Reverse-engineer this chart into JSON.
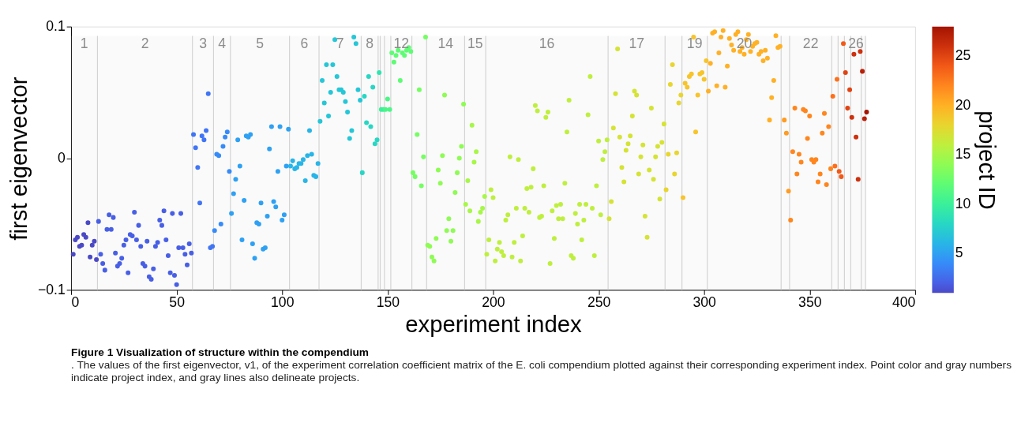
{
  "chart_data": {
    "type": "scatter",
    "title": "Figure 1 Visualization of structure within the compendium",
    "subtitle": ". The values of the first eigenvector, v1, of the experiment correlation coefficient matrix of the E. coli compendium plotted against their corresponding experiment index. Point color and gray numbers indicate project index, and gray lines also delineate projects.",
    "xlabel": "experiment index",
    "ylabel": "first eigenvector",
    "clabel": "project ID",
    "xlim": [
      0,
      400
    ],
    "xticks": [
      0,
      50,
      100,
      150,
      200,
      250,
      300,
      350,
      400
    ],
    "ylim": [
      -0.1,
      0.1
    ],
    "yticks": [
      -0.1,
      0,
      0.1
    ],
    "clim": [
      1,
      28
    ],
    "cticks": [
      5,
      10,
      15,
      20,
      25
    ],
    "x": [
      1,
      2,
      3,
      4,
      5,
      6,
      7,
      8,
      9,
      10,
      11,
      12,
      13,
      14,
      15,
      16,
      17,
      18,
      19,
      20,
      21,
      22,
      23,
      24,
      25,
      26,
      27,
      28,
      29,
      30,
      31,
      32,
      33,
      34,
      35,
      36,
      37,
      38,
      39,
      40,
      41,
      42,
      43,
      44,
      45,
      46,
      47,
      48,
      49,
      50,
      51,
      52,
      53,
      54,
      55,
      56,
      57,
      58,
      59,
      60,
      61,
      62,
      63,
      64,
      65,
      66,
      67,
      68,
      69,
      70,
      71,
      72,
      73,
      74,
      75,
      76,
      77,
      78,
      79,
      80,
      81,
      82,
      83,
      84,
      85,
      86,
      87,
      88,
      89,
      90,
      91,
      92,
      93,
      94,
      95,
      96,
      97,
      98,
      99,
      100,
      101,
      102,
      103,
      104,
      105,
      106,
      107,
      108,
      109,
      110,
      111,
      112,
      113,
      114,
      115,
      116,
      117,
      118,
      119,
      120,
      121,
      122,
      123,
      124,
      125,
      126,
      127,
      128,
      129,
      130,
      131,
      132,
      133,
      134,
      135,
      136,
      137,
      138,
      139,
      140,
      141,
      142,
      143,
      144,
      145,
      146,
      147,
      148,
      149,
      150,
      151,
      152,
      153,
      154,
      155,
      156,
      157,
      158,
      159,
      160,
      161,
      162,
      163,
      164,
      165,
      166,
      167,
      168,
      169,
      170,
      171,
      172,
      173,
      174,
      175,
      176,
      177,
      178,
      179,
      180,
      181,
      182,
      183,
      184,
      185,
      186,
      187,
      188,
      189,
      190,
      191,
      192,
      193,
      194,
      195,
      196,
      197,
      198,
      199,
      200,
      201,
      202,
      203,
      204,
      205,
      206,
      207,
      208,
      209,
      210,
      211,
      212,
      213,
      214,
      215,
      216,
      217,
      218,
      219,
      220,
      221,
      222,
      223,
      224,
      225,
      226,
      227,
      228,
      229,
      230,
      231,
      232,
      233,
      234,
      235,
      236,
      237,
      238,
      239,
      240,
      241,
      242,
      243,
      244,
      245,
      246,
      247,
      248,
      249,
      250,
      251,
      252,
      253,
      254,
      255,
      256,
      257,
      258,
      259,
      260,
      261,
      262,
      263,
      264,
      265,
      266,
      267,
      268,
      269,
      270,
      271,
      272,
      273,
      274,
      275,
      276,
      277,
      278,
      279,
      280,
      281,
      282,
      283,
      284,
      285,
      286,
      287,
      288,
      289,
      290,
      291,
      292,
      293,
      294,
      295,
      296,
      297,
      298,
      299,
      300,
      301,
      302,
      303,
      304,
      305,
      306,
      307,
      308,
      309,
      310,
      311,
      312,
      313,
      314,
      315,
      316,
      317,
      318,
      319,
      320,
      321,
      322,
      323,
      324,
      325,
      326,
      327,
      328,
      329,
      330,
      331,
      332,
      333,
      334,
      335,
      336,
      337,
      338,
      339,
      340,
      341,
      342,
      343,
      344,
      345,
      346,
      347,
      348,
      349,
      350,
      351,
      352,
      353,
      354,
      355,
      356,
      357,
      358,
      359,
      360,
      361,
      362,
      363,
      364,
      365,
      366,
      367,
      368,
      369,
      370,
      371,
      372,
      373,
      374,
      375,
      376,
      377
    ],
    "values": [
      -0.073,
      -0.062,
      -0.06,
      -0.067,
      -0.066,
      -0.058,
      -0.06,
      -0.049,
      -0.075,
      -0.066,
      -0.063,
      -0.077,
      -0.048,
      -0.073,
      -0.08,
      -0.085,
      -0.054,
      -0.043,
      -0.054,
      -0.045,
      -0.072,
      -0.082,
      -0.08,
      -0.076,
      -0.066,
      -0.062,
      -0.087,
      -0.058,
      -0.059,
      -0.041,
      -0.062,
      -0.051,
      -0.067,
      -0.08,
      -0.082,
      -0.063,
      -0.09,
      -0.092,
      -0.084,
      -0.067,
      -0.064,
      -0.047,
      -0.051,
      -0.04,
      -0.062,
      -0.074,
      -0.087,
      -0.042,
      -0.089,
      -0.096,
      -0.068,
      -0.042,
      -0.068,
      -0.073,
      -0.081,
      -0.065,
      -0.072,
      0.018,
      0.008,
      -0.007,
      -0.034,
      0.017,
      0.014,
      0.021,
      0.049,
      -0.068,
      -0.067,
      -0.055,
      0.003,
      0.002,
      -0.05,
      0.009,
      0.016,
      0.02,
      -0.01,
      -0.042,
      -0.027,
      -0.016,
      0.014,
      -0.006,
      -0.062,
      -0.032,
      0.017,
      0.016,
      0.018,
      -0.065,
      -0.076,
      -0.049,
      -0.05,
      -0.034,
      -0.069,
      -0.068,
      -0.044,
      0.007,
      0.024,
      -0.033,
      -0.037,
      -0.01,
      0.024,
      -0.047,
      -0.043,
      -0.006,
      0.022,
      -0.006,
      -0.002,
      -0.008,
      -0.007,
      -0.004,
      -0.004,
      -0.001,
      -0.017,
      0.002,
      0.021,
      0.003,
      -0.013,
      -0.014,
      -0.004,
      0.028,
      0.059,
      0.042,
      0.071,
      0.032,
      0.05,
      0.071,
      0.09,
      0.062,
      0.052,
      0.052,
      0.05,
      0.043,
      0.035,
      0.015,
      0.021,
      0.092,
      0.087,
      0.052,
      0.044,
      -0.011,
      0.047,
      0.027,
      0.062,
      0.024,
      0.054,
      0.011,
      0.014,
      0.065,
      0.037,
      0.037,
      0.037,
      0.045,
      0.037,
      0.08,
      0.073,
      0.078,
      0.082,
      0.059,
      0.08,
      0.078,
      0.082,
      0.084,
      0.081,
      -0.011,
      -0.014,
      0.018,
      0.052,
      -0.021,
      0.001,
      0.092,
      -0.066,
      -0.067,
      -0.075,
      -0.078,
      -0.061,
      -0.009,
      -0.019,
      0.002,
      0.048,
      -0.055,
      -0.046,
      -0.063,
      -0.055,
      -0.026,
      -0.011,
      0.0,
      0.009,
      0.041,
      -0.035,
      -0.017,
      -0.04,
      0.025,
      -0.003,
      0.005,
      -0.048,
      -0.041,
      -0.038,
      -0.029,
      -0.073,
      -0.062,
      -0.024,
      -0.03,
      -0.078,
      -0.069,
      -0.064,
      -0.071,
      -0.074,
      -0.047,
      -0.043,
      0.001,
      -0.075,
      -0.064,
      -0.038,
      -0.001,
      -0.078,
      -0.059,
      -0.038,
      -0.023,
      -0.041,
      -0.022,
      -0.008,
      0.04,
      0.036,
      -0.045,
      -0.044,
      -0.021,
      0.031,
      0.035,
      -0.08,
      -0.04,
      -0.061,
      -0.036,
      -0.046,
      -0.035,
      -0.046,
      -0.019,
      0.02,
      0.044,
      -0.074,
      -0.076,
      -0.042,
      -0.05,
      -0.035,
      -0.062,
      -0.047,
      -0.035,
      0.033,
      0.062,
      -0.038,
      -0.074,
      -0.021,
      0.013,
      -0.043,
      -0.001,
      0.005,
      0.014,
      -0.046,
      -0.033,
      0.023,
      0.049,
      0.083,
      0.016,
      -0.007,
      -0.018,
      0.006,
      0.011,
      0.017,
      0.032,
      0.051,
      0.048,
      -0.012,
      0.001,
      0.01,
      -0.044,
      -0.06,
      -0.009,
      0.038,
      -0.016,
      0.001,
      0.009,
      -0.031,
      0.012,
      0.026,
      -0.024,
      0.003,
      0.056,
      0.071,
      -0.012,
      0.004,
      0.042,
      0.048,
      -0.03,
      0.057,
      0.054,
      0.062,
      0.064,
      0.092,
      0.02,
      0.048,
      0.064,
      0.065,
      0.06,
      0.074,
      0.051,
      0.072,
      0.095,
      0.096,
      0.055,
      0.08,
      0.092,
      0.097,
      0.054,
      0.07,
      0.091,
      0.086,
      0.082,
      0.094,
      0.096,
      0.081,
      0.084,
      0.079,
      0.09,
      0.094,
      0.081,
      0.085,
      0.087,
      0.088,
      0.079,
      0.081,
      0.074,
      0.082,
      0.076,
      0.029,
      0.046,
      0.059,
      0.093,
      0.084,
      0.085,
      null,
      0.029,
      0.019,
      -0.025,
      -0.047,
      0.005,
      0.038,
      -0.012,
      0.003,
      -0.003,
      0.037,
      0.036,
      0.015,
      0.032,
      -0.001,
      -0.003,
      -0.001,
      -0.018,
      -0.012,
      0.019,
      0.034,
      -0.02,
      0.024,
      -0.008,
      0.047,
      -0.006,
      0.06,
      -0.01,
      -0.014,
      0.087,
      0.065,
      0.038,
      0.052,
      0.031,
      0.079,
      0.016,
      -0.016,
      0.081,
      0.066,
      0.03,
      0.035
    ],
    "cvalues": [
      1,
      1,
      1,
      1,
      1,
      1,
      1,
      1,
      1,
      1,
      1,
      1,
      2,
      2,
      2,
      2,
      2,
      2,
      2,
      2,
      2,
      2,
      2,
      2,
      2,
      2,
      2,
      2,
      2,
      2,
      2,
      2,
      2,
      2,
      2,
      2,
      2,
      2,
      2,
      2,
      2,
      2,
      2,
      2,
      2,
      2,
      2,
      2,
      2,
      2,
      2,
      2,
      2,
      2,
      2,
      2,
      2,
      3,
      3,
      3,
      3,
      3,
      3,
      3,
      3,
      3,
      3,
      4,
      4,
      4,
      4,
      4,
      4,
      4,
      4,
      5,
      5,
      5,
      5,
      5,
      5,
      5,
      5,
      5,
      5,
      5,
      5,
      5,
      5,
      5,
      5,
      5,
      5,
      5,
      5,
      5,
      5,
      5,
      5,
      5,
      5,
      5,
      5,
      6,
      6,
      6,
      6,
      6,
      6,
      6,
      6,
      6,
      6,
      6,
      6,
      6,
      6,
      7,
      7,
      7,
      7,
      7,
      7,
      7,
      7,
      7,
      7,
      7,
      7,
      7,
      7,
      7,
      7,
      7,
      7,
      7,
      7,
      8,
      8,
      8,
      8,
      8,
      8,
      8,
      8,
      9,
      10,
      10,
      11,
      11,
      11,
      12,
      12,
      12,
      12,
      12,
      12,
      12,
      12,
      12,
      12,
      13,
      13,
      13,
      13,
      13,
      13,
      13,
      14,
      14,
      14,
      14,
      14,
      14,
      14,
      14,
      14,
      14,
      14,
      14,
      14,
      14,
      14,
      14,
      14,
      14,
      15,
      15,
      15,
      15,
      15,
      15,
      15,
      15,
      15,
      15,
      16,
      16,
      16,
      16,
      16,
      16,
      16,
      16,
      16,
      16,
      16,
      16,
      16,
      16,
      16,
      16,
      16,
      16,
      16,
      16,
      16,
      16,
      16,
      16,
      16,
      16,
      16,
      16,
      16,
      16,
      16,
      16,
      16,
      16,
      16,
      16,
      16,
      16,
      16,
      16,
      16,
      16,
      16,
      16,
      16,
      16,
      16,
      16,
      16,
      16,
      16,
      16,
      16,
      16,
      16,
      16,
      16,
      16,
      17,
      17,
      17,
      17,
      17,
      17,
      17,
      17,
      17,
      17,
      17,
      17,
      17,
      17,
      17,
      17,
      17,
      17,
      17,
      17,
      17,
      17,
      17,
      17,
      17,
      17,
      17,
      18,
      18,
      18,
      18,
      18,
      18,
      18,
      18,
      19,
      19,
      19,
      19,
      19,
      19,
      19,
      19,
      19,
      19,
      19,
      19,
      20,
      20,
      20,
      20,
      20,
      20,
      20,
      20,
      20,
      20,
      20,
      20,
      20,
      20,
      20,
      20,
      20,
      20,
      20,
      20,
      20,
      20,
      20,
      20,
      20,
      20,
      20,
      20,
      20,
      20,
      20,
      20,
      20,
      20,
      20,
      null,
      21,
      21,
      21,
      22,
      22,
      22,
      22,
      22,
      22,
      22,
      22,
      22,
      22,
      22,
      22,
      22,
      22,
      22,
      22,
      22,
      22,
      22,
      22,
      23,
      23,
      23,
      24,
      24,
      24,
      25,
      25,
      25,
      26,
      26,
      26,
      26,
      26,
      27,
      27,
      28
    ],
    "bands": [
      {
        "axis": "x",
        "from": 0,
        "to": 12.5,
        "label": "1",
        "color": "#d3d3d3"
      },
      {
        "axis": "x",
        "from": 12.5,
        "to": 57.5,
        "label": "2",
        "color": "#d3d3d3"
      },
      {
        "axis": "x",
        "from": 57.5,
        "to": 67.5,
        "label": "3",
        "color": "#d3d3d3"
      },
      {
        "axis": "x",
        "from": 67.5,
        "to": 75.5,
        "label": "4",
        "color": "#d3d3d3"
      },
      {
        "axis": "x",
        "from": 75.5,
        "to": 103.5,
        "label": "5",
        "color": "#d3d3d3"
      },
      {
        "axis": "x",
        "from": 103.5,
        "to": 117.5,
        "label": "6",
        "color": "#d3d3d3"
      },
      {
        "axis": "x",
        "from": 117.5,
        "to": 137.5,
        "label": "7",
        "color": "#d3d3d3"
      },
      {
        "axis": "x",
        "from": 137.5,
        "to": 145.5,
        "label": "8",
        "color": "#d3d3d3"
      },
      {
        "axis": "x",
        "from": 145.5,
        "to": 146.5,
        "color": "#d3d3d3"
      },
      {
        "axis": "x",
        "from": 146.5,
        "to": 148.5,
        "color": "#d3d3d3"
      },
      {
        "axis": "x",
        "from": 148.5,
        "to": 151.5,
        "color": "#d3d3d3"
      },
      {
        "axis": "x",
        "from": 151.5,
        "to": 161.5,
        "label": "12",
        "color": "#d3d3d3"
      },
      {
        "axis": "x",
        "from": 161.5,
        "to": 168.5,
        "color": "#d3d3d3"
      },
      {
        "axis": "x",
        "from": 168.5,
        "to": 186.5,
        "label": "14",
        "color": "#d3d3d3"
      },
      {
        "axis": "x",
        "from": 186.5,
        "to": 196.5,
        "label": "15",
        "color": "#d3d3d3"
      },
      {
        "axis": "x",
        "from": 196.5,
        "to": 254.5,
        "label": "16",
        "color": "#d3d3d3"
      },
      {
        "axis": "x",
        "from": 254.5,
        "to": 281.5,
        "label": "17",
        "color": "#d3d3d3"
      },
      {
        "axis": "x",
        "from": 281.5,
        "to": 289.5,
        "color": "#d3d3d3"
      },
      {
        "axis": "x",
        "from": 289.5,
        "to": 301.5,
        "label": "19",
        "color": "#d3d3d3"
      },
      {
        "axis": "x",
        "from": 301.5,
        "to": 336.5,
        "label": "20",
        "color": "#d3d3d3"
      },
      {
        "axis": "x",
        "from": 336.5,
        "to": 340.5,
        "color": "#d3d3d3"
      },
      {
        "axis": "x",
        "from": 340.5,
        "to": 360.5,
        "label": "22",
        "color": "#d3d3d3"
      },
      {
        "axis": "x",
        "from": 360.5,
        "to": 363.5,
        "color": "#d3d3d3"
      },
      {
        "axis": "x",
        "from": 363.5,
        "to": 366.5,
        "color": "#d3d3d3"
      },
      {
        "axis": "x",
        "from": 366.5,
        "to": 369.5,
        "color": "#d3d3d3"
      },
      {
        "axis": "x",
        "from": 369.5,
        "to": 374.5,
        "label": "26",
        "color": "#d3d3d3"
      },
      {
        "axis": "x",
        "from": 374.5,
        "to": 376.5,
        "color": "#d3d3d3"
      }
    ]
  }
}
